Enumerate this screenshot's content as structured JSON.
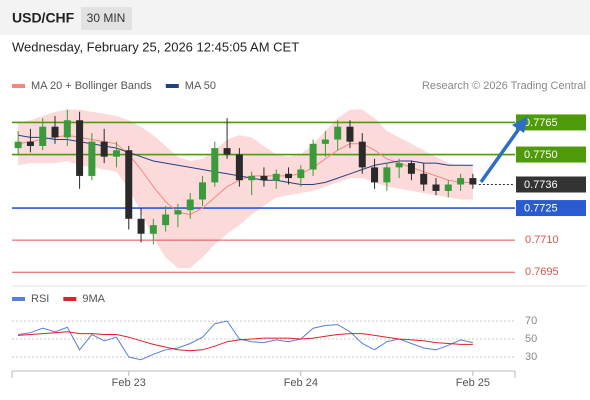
{
  "header": {
    "symbol": "USD/CHF",
    "timeframe": "30 MIN",
    "datetime": "Wednesday, February 25, 2026 12:45:05 AM CET"
  },
  "chart_data": [
    {
      "type": "candlestick",
      "credit": "Research © 2026 Trading Central",
      "up_color": "#3b9a3b",
      "down_color": "#2a2a2a",
      "ylim": [
        0.769,
        0.7775
      ],
      "categories": [
        null,
        null,
        null,
        null,
        null,
        null,
        null,
        null,
        null,
        "Feb 23",
        null,
        null,
        null,
        null,
        null,
        null,
        null,
        null,
        null,
        null,
        null,
        null,
        null,
        "Feb 24",
        null,
        null,
        null,
        null,
        null,
        null,
        null,
        null,
        null,
        null,
        null,
        null,
        null,
        "Feb 25"
      ],
      "candles": {
        "open": [
          0.7753,
          0.7756,
          0.7754,
          0.7763,
          0.7758,
          0.7766,
          0.774,
          0.7756,
          0.7749,
          0.7752,
          0.772,
          0.7713,
          0.7717,
          0.7722,
          0.7724,
          0.7729,
          0.7737,
          0.7753,
          0.775,
          0.7738,
          0.774,
          0.7738,
          0.7741,
          0.7739,
          0.7743,
          0.7755,
          0.7757,
          0.7763,
          0.7756,
          0.7744,
          0.7737,
          0.7744,
          0.7746,
          0.7741,
          0.7736,
          0.7733,
          0.7736,
          0.7739
        ],
        "high": [
          0.7761,
          0.7762,
          0.7767,
          0.7768,
          0.7771,
          0.777,
          0.776,
          0.7762,
          0.7756,
          0.7754,
          0.7725,
          0.772,
          0.7726,
          0.7727,
          0.7732,
          0.774,
          0.7756,
          0.7767,
          0.7753,
          0.7742,
          0.7744,
          0.7743,
          0.7744,
          0.7745,
          0.7757,
          0.7761,
          0.7766,
          0.7766,
          0.776,
          0.7748,
          0.7746,
          0.7748,
          0.7747,
          0.7746,
          0.7739,
          0.7738,
          0.7741,
          0.7741
        ],
        "low": [
          0.775,
          0.7751,
          0.7752,
          0.7755,
          0.7754,
          0.7734,
          0.7738,
          0.7746,
          0.7744,
          0.7715,
          0.7709,
          0.7708,
          0.7714,
          0.7716,
          0.772,
          0.7726,
          0.7735,
          0.7748,
          0.7735,
          0.7731,
          0.7735,
          0.7734,
          0.7736,
          0.7735,
          0.774,
          0.7749,
          0.7752,
          0.7753,
          0.7741,
          0.7734,
          0.7733,
          0.7739,
          0.7738,
          0.7733,
          0.7731,
          0.773,
          0.7733,
          0.7734
        ],
        "close": [
          0.7756,
          0.7754,
          0.7763,
          0.7758,
          0.7766,
          0.774,
          0.7756,
          0.7749,
          0.7752,
          0.772,
          0.7713,
          0.7717,
          0.7722,
          0.7724,
          0.7729,
          0.7737,
          0.7753,
          0.775,
          0.7738,
          0.774,
          0.7738,
          0.7741,
          0.7739,
          0.7743,
          0.7755,
          0.7757,
          0.7763,
          0.7756,
          0.7744,
          0.7737,
          0.7744,
          0.7746,
          0.7741,
          0.7736,
          0.7733,
          0.7736,
          0.7739,
          0.7736
        ]
      },
      "series": [
        {
          "name": "MA 20 + Bollinger Bands",
          "color": "#f08a80",
          "band_color": "#fbd3d3",
          "values": [
            0.7755,
            0.7756,
            0.7757,
            0.7758,
            0.7759,
            0.7758,
            0.7757,
            0.7756,
            0.7755,
            0.775,
            0.7743,
            0.7735,
            0.7728,
            0.7723,
            0.7722,
            0.7725,
            0.773,
            0.7735,
            0.7738,
            0.774,
            0.774,
            0.774,
            0.774,
            0.7741,
            0.7744,
            0.7748,
            0.7752,
            0.7755,
            0.7755,
            0.7752,
            0.7748,
            0.7746,
            0.7744,
            0.7742,
            0.774,
            0.7738,
            0.7737,
            0.7737
          ],
          "upper": [
            0.7765,
            0.7766,
            0.7768,
            0.777,
            0.7771,
            0.7771,
            0.777,
            0.7769,
            0.7768,
            0.7766,
            0.7763,
            0.7759,
            0.7754,
            0.7749,
            0.7747,
            0.7748,
            0.7752,
            0.7757,
            0.7759,
            0.7758,
            0.7754,
            0.775,
            0.7749,
            0.775,
            0.7755,
            0.7761,
            0.7767,
            0.7771,
            0.7771,
            0.7767,
            0.7761,
            0.7758,
            0.7755,
            0.7752,
            0.7749,
            0.7746,
            0.7745,
            0.7745
          ],
          "lower": [
            0.7745,
            0.7746,
            0.7746,
            0.7746,
            0.7747,
            0.7745,
            0.7744,
            0.7743,
            0.7742,
            0.7734,
            0.7723,
            0.7711,
            0.7702,
            0.7697,
            0.7697,
            0.7702,
            0.7708,
            0.7713,
            0.7717,
            0.7722,
            0.7726,
            0.773,
            0.7731,
            0.7732,
            0.7733,
            0.7735,
            0.7737,
            0.7739,
            0.7739,
            0.7737,
            0.7735,
            0.7734,
            0.7733,
            0.7732,
            0.7731,
            0.773,
            0.7729,
            0.7729
          ]
        },
        {
          "name": "MA 50",
          "color": "#23427e",
          "values": [
            0.7759,
            0.7758,
            0.7758,
            0.7757,
            0.7757,
            0.7756,
            0.7755,
            0.7754,
            0.7753,
            0.7751,
            0.7749,
            0.7747,
            0.7746,
            0.7745,
            0.7744,
            0.7743,
            0.7742,
            0.7741,
            0.774,
            0.7739,
            0.7738,
            0.7738,
            0.7737,
            0.7736,
            0.7736,
            0.7737,
            0.7739,
            0.7741,
            0.7743,
            0.7745,
            0.7746,
            0.7747,
            0.7747,
            0.7746,
            0.7746,
            0.7745,
            0.7745,
            0.7745
          ]
        }
      ],
      "levels": [
        {
          "value": 0.7765,
          "label": "0.7765",
          "color": "#4f9a0a",
          "style": "box"
        },
        {
          "value": 0.775,
          "label": "0.7750",
          "color": "#4f9a0a",
          "style": "box"
        },
        {
          "value": 0.7736,
          "label": "0.7736",
          "color": "#333333",
          "style": "current"
        },
        {
          "value": 0.7725,
          "label": "0.7725",
          "color": "#2a5bd0",
          "style": "box"
        },
        {
          "value": 0.771,
          "label": "0.7710",
          "color": "#e05050",
          "style": "text"
        },
        {
          "value": 0.7695,
          "label": "0.7695",
          "color": "#e05050",
          "style": "text"
        }
      ]
    },
    {
      "type": "line",
      "ylim": [
        20,
        80
      ],
      "yticks": [
        30,
        50,
        70
      ],
      "series": [
        {
          "name": "RSI",
          "color": "#5b7fd6",
          "values": [
            55,
            57,
            62,
            58,
            63,
            38,
            55,
            48,
            52,
            30,
            27,
            33,
            38,
            40,
            45,
            52,
            67,
            70,
            50,
            47,
            46,
            49,
            47,
            50,
            62,
            65,
            66,
            58,
            45,
            38,
            47,
            50,
            45,
            40,
            38,
            43,
            49,
            46
          ]
        },
        {
          "name": "9MA",
          "color": "#e0202a",
          "values": [
            54,
            55,
            56,
            57,
            58,
            56,
            56,
            55,
            55,
            52,
            48,
            44,
            41,
            38,
            37,
            38,
            42,
            47,
            49,
            50,
            51,
            51,
            51,
            50,
            51,
            53,
            55,
            56,
            56,
            54,
            52,
            50,
            49,
            48,
            46,
            45,
            44,
            44
          ]
        }
      ]
    }
  ]
}
